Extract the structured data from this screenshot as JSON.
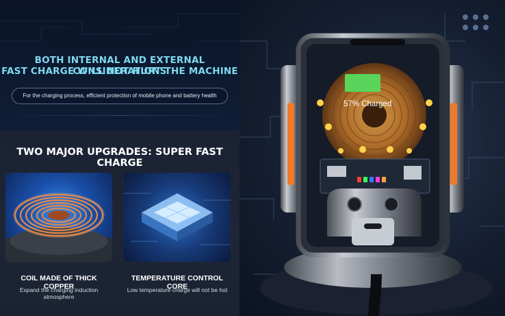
{
  "left_panel": {
    "headline_line1": "BOTH INTERNAL AND EXTERNAL CONSIDERATIONS",
    "headline_line2": "FAST CHARGE WILL NOT HURT THE MACHINE",
    "pill_text": "For the charging process, efficient protection of mobile phone and battery health",
    "section_title": "TWO MAJOR UPGRADES: SUPER FAST CHARGE",
    "features": [
      {
        "title": "COIL MADE OF THICK COPPER",
        "subtitle": "Expand the charging induction atmosphere",
        "icon": "copper-coil-icon"
      },
      {
        "title": "TEMPERATURE CONTROL CORE",
        "subtitle": "Low temperature charge will not be hot",
        "icon": "chip-core-icon"
      }
    ]
  },
  "right_panel": {
    "phone_status": "57% Charged",
    "battery_level": 0.57,
    "icon": "wireless-car-charger-icon"
  },
  "colors": {
    "headline": "#7fd9f0",
    "accent_orange": "#f07a2a",
    "battery_green": "#5ad45a"
  }
}
